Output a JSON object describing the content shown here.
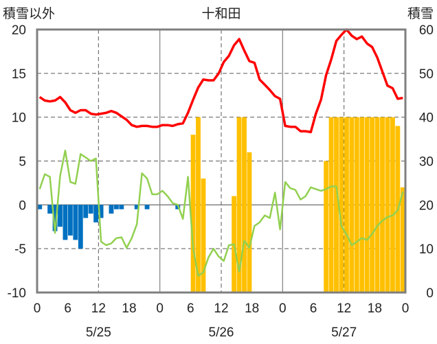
{
  "chart_data": {
    "type": "bar+line",
    "title": "十和田",
    "left_axis_label": "積雪以外",
    "right_axis_label": "積雪",
    "left_ylim": [
      -10,
      20
    ],
    "left_ticks": [
      -10,
      -5,
      0,
      5,
      10,
      15,
      20
    ],
    "right_ylim": [
      0,
      60
    ],
    "right_ticks": [
      0,
      10,
      20,
      30,
      40,
      50,
      60
    ],
    "xlim": [
      0,
      72
    ],
    "x_tick_positions": [
      0,
      6,
      12,
      18,
      24,
      30,
      36,
      42,
      48,
      54,
      60,
      66,
      72
    ],
    "x_tick_labels": [
      "0",
      "6",
      "12",
      "18",
      "0",
      "6",
      "12",
      "18",
      "0",
      "6",
      "12",
      "18",
      "0"
    ],
    "date_labels": [
      {
        "hour": 12,
        "text": "5/25"
      },
      {
        "hour": 36,
        "text": "5/26"
      },
      {
        "hour": 60,
        "text": "5/27"
      }
    ],
    "vertical_dashed_at": [
      12,
      36,
      60
    ],
    "vertical_solid_at": [
      24,
      48
    ],
    "horizontal_dashed_at": [
      15,
      10,
      5,
      -5
    ],
    "series": [
      {
        "kind": "bar",
        "axis": "left",
        "color": "#0070C0",
        "hours": [
          0,
          1,
          2,
          3,
          4,
          5,
          6,
          7,
          8,
          9,
          10,
          11,
          12,
          13,
          14,
          15,
          16,
          17,
          18,
          19,
          20,
          21,
          22,
          23,
          24,
          25,
          26,
          27,
          28,
          29,
          30,
          31,
          32,
          33,
          34,
          35,
          36,
          37,
          38,
          39,
          40,
          41,
          42,
          43,
          44,
          45,
          46,
          47,
          48,
          49,
          50,
          51,
          52,
          53,
          54,
          55,
          56,
          57,
          58,
          59,
          60,
          61,
          62,
          63,
          64,
          65,
          66,
          67,
          68,
          69,
          70,
          71
        ],
        "values": [
          -0.5,
          0,
          -1,
          -3,
          -2.5,
          -4,
          -3.5,
          -4,
          -5,
          -1.5,
          -1,
          -2,
          -1.5,
          0,
          -1,
          -0.5,
          -0.5,
          0,
          0,
          -0.5,
          0,
          -0.5,
          0,
          0,
          0,
          0,
          0,
          -0.5,
          0,
          0,
          0,
          0,
          0,
          0,
          0,
          0,
          0,
          0,
          0,
          0,
          0,
          0,
          0,
          0,
          0,
          0,
          0,
          0,
          0,
          0,
          0,
          0,
          0,
          0,
          0,
          0,
          0,
          0,
          0,
          0,
          0,
          0,
          0,
          0,
          0,
          0,
          0,
          0,
          0,
          0,
          0,
          0
        ]
      },
      {
        "kind": "bar",
        "axis": "right",
        "color": "#FFC000",
        "hours": [
          0,
          1,
          2,
          3,
          4,
          5,
          6,
          7,
          8,
          9,
          10,
          11,
          12,
          13,
          14,
          15,
          16,
          17,
          18,
          19,
          20,
          21,
          22,
          23,
          24,
          25,
          26,
          27,
          28,
          29,
          30,
          31,
          32,
          33,
          34,
          35,
          36,
          37,
          38,
          39,
          40,
          41,
          42,
          43,
          44,
          45,
          46,
          47,
          48,
          49,
          50,
          51,
          52,
          53,
          54,
          55,
          56,
          57,
          58,
          59,
          60,
          61,
          62,
          63,
          64,
          65,
          66,
          67,
          68,
          69,
          70,
          71
        ],
        "values": [
          0,
          0,
          0,
          0,
          0,
          0,
          0,
          0,
          0,
          0,
          0,
          0,
          0,
          0,
          0,
          0,
          0,
          0,
          0,
          0,
          0,
          0,
          0,
          0,
          0,
          0,
          0,
          0,
          0,
          0,
          36,
          40,
          26,
          0,
          0,
          0,
          0,
          0,
          22,
          40,
          40,
          32,
          0,
          0,
          0,
          0,
          0,
          0,
          0,
          0,
          0,
          0,
          0,
          0,
          0,
          0,
          30,
          40,
          40,
          40,
          40,
          40,
          40,
          40,
          40,
          40,
          40,
          40,
          40,
          40,
          38,
          24
        ]
      },
      {
        "kind": "line",
        "axis": "left",
        "color": "#FF0000",
        "x": [
          0,
          1,
          2,
          3,
          4,
          5,
          6,
          7,
          8,
          9,
          10,
          11,
          12,
          13,
          14,
          15,
          16,
          17,
          18,
          19,
          20,
          21,
          22,
          23,
          24,
          25,
          26,
          27,
          28,
          29,
          30,
          31,
          32,
          33,
          34,
          35,
          36,
          37,
          38,
          39,
          40,
          41,
          42,
          43,
          44,
          45,
          46,
          47,
          48,
          49,
          50,
          51,
          52,
          53,
          54,
          55,
          56,
          57,
          58,
          59,
          60,
          61,
          62,
          63,
          64,
          65,
          66,
          67,
          68,
          69,
          70,
          71
        ],
        "values": [
          12.3,
          11.9,
          11.8,
          11.9,
          12.3,
          11.7,
          10.8,
          10.5,
          10.8,
          10.8,
          10.4,
          10.3,
          10.4,
          10.5,
          10.7,
          10.5,
          10.1,
          9.7,
          9.1,
          8.9,
          9.0,
          9.0,
          8.9,
          8.9,
          9.1,
          9.1,
          9.0,
          9.2,
          9.3,
          10.5,
          12.0,
          13.4,
          14.3,
          14.2,
          14.2,
          15.0,
          16.3,
          17.0,
          18.2,
          18.9,
          17.6,
          16.4,
          16.2,
          14.3,
          13.7,
          13.1,
          12.4,
          12.1,
          9.0,
          8.9,
          8.9,
          8.4,
          8.4,
          8.3,
          10.4,
          12.0,
          14.8,
          16.6,
          18.7,
          19.4,
          20.0,
          19.3,
          18.9,
          19.2,
          18.4,
          18.0,
          16.8,
          15.2,
          13.6,
          13.3,
          12.1,
          12.2
        ]
      },
      {
        "kind": "line",
        "axis": "left",
        "color": "#92D050",
        "x": [
          0,
          1,
          2,
          3,
          4,
          5,
          6,
          7,
          8,
          9,
          10,
          11,
          12,
          13,
          14,
          15,
          16,
          17,
          18,
          19,
          20,
          21,
          22,
          23,
          24,
          25,
          26,
          27,
          28,
          29,
          30,
          31,
          32,
          33,
          34,
          35,
          36,
          37,
          38,
          39,
          40,
          41,
          42,
          43,
          44,
          45,
          46,
          47,
          48,
          49,
          50,
          51,
          52,
          53,
          54,
          55,
          56,
          57,
          58,
          59,
          60,
          61,
          62,
          63,
          64,
          65,
          66,
          67,
          68,
          69,
          70,
          71
        ],
        "values": [
          1.8,
          3.5,
          3.2,
          -3.2,
          3.3,
          6.2,
          2.6,
          2.4,
          5.8,
          5.4,
          5.0,
          5.3,
          -4.2,
          -4.6,
          -4.4,
          -3.8,
          -3.7,
          -4.9,
          -3.8,
          -2.2,
          3.6,
          3.0,
          1.2,
          1.2,
          1.6,
          1.0,
          0.2,
          0.0,
          -1.6,
          3.2,
          -5.0,
          -8.1,
          -7.7,
          -6.0,
          -5.0,
          -5.9,
          -6.4,
          -4.6,
          -4.5,
          -7.6,
          -4.1,
          -4.9,
          -2.4,
          -2.0,
          -1.2,
          -1.5,
          1.4,
          -2.8,
          2.6,
          1.9,
          1.7,
          0.6,
          1.0,
          2.0,
          1.8,
          1.6,
          1.8,
          2.1,
          2.1,
          -2.4,
          -3.4,
          -4.6,
          -4.2,
          -3.8,
          -4.0,
          -3.3,
          -2.4,
          -1.8,
          -1.4,
          -1.2,
          -0.6,
          1.5
        ]
      }
    ],
    "grid": true
  }
}
